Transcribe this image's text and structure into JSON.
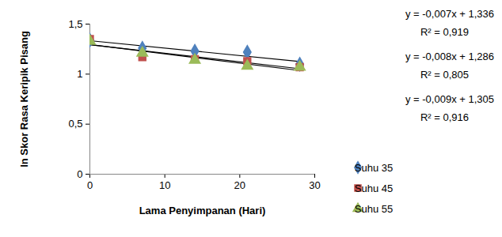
{
  "chart_data": {
    "type": "scatter",
    "x_label": "Lama Penyimpanan (Hari)",
    "y_label": "ln Skor Rasa Keripik Pisang",
    "x": [
      0,
      7,
      14,
      21,
      28
    ],
    "series": [
      {
        "name": "Suhu 35",
        "color": "#4F81BD",
        "marker": "diamond",
        "values": [
          1.34,
          1.26,
          1.23,
          1.22,
          1.1
        ]
      },
      {
        "name": "Suhu 45",
        "color": "#C0504D",
        "marker": "square",
        "values": [
          1.35,
          1.17,
          1.15,
          1.13,
          1.07
        ]
      },
      {
        "name": "Suhu 55",
        "color": "#9BBB59",
        "marker": "triangle",
        "values": [
          1.33,
          1.21,
          1.14,
          1.08,
          1.07
        ]
      }
    ],
    "xlim": [
      0,
      30
    ],
    "xticks": [
      0,
      10,
      20,
      30
    ],
    "ylim": [
      0,
      1.5
    ],
    "yticks": [
      0,
      {
        "value": 0.5,
        "label": "0,5"
      },
      1,
      {
        "value": 1.5,
        "label": "1,5"
      }
    ],
    "annotations": [
      "y = -0,007x + 1,336",
      "R² = 0,919",
      "y = -0,008x + 1,286",
      "R² = 0,805",
      "y = -0,009x + 1,305",
      "R² = 0,916"
    ],
    "grid": false,
    "legend": "right"
  }
}
